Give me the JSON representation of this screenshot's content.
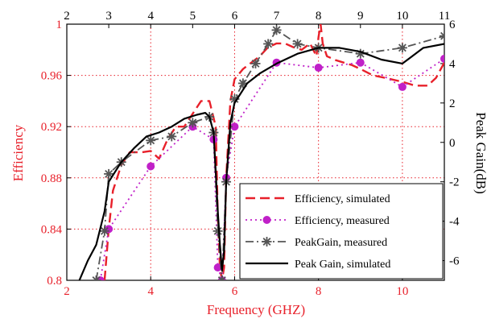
{
  "chart_data": {
    "type": "line",
    "xlabel": "Frequency (GHZ)",
    "ylabel_left": "Efficiency",
    "ylabel_right": "Peak Gain(dB)",
    "xlim": [
      2,
      11
    ],
    "ylim_left": [
      0.8,
      1.0
    ],
    "ylim_right": [
      -7,
      6
    ],
    "xticks": [
      "2",
      "4",
      "6",
      "8",
      "10"
    ],
    "xticks_top": [
      "2",
      "3",
      "4",
      "5",
      "6",
      "7",
      "8",
      "9",
      "10",
      "11"
    ],
    "yticks_left": [
      "0.8",
      "0.84",
      "0.88",
      "0.92",
      "0.96",
      "1"
    ],
    "yticks_right": [
      "-6",
      "-4",
      "-2",
      "0",
      "2",
      "4",
      "6"
    ],
    "grid": true,
    "legend_position": "bottom-right",
    "colors": {
      "left_axis": "#e8202a",
      "right_axis": "#000000",
      "grid": "#e8202a"
    },
    "series": [
      {
        "name": "Efficiency, simulated",
        "axis": "left",
        "color": "#e8202a",
        "style": "dashed",
        "x": [
          2.9,
          3.0,
          3.1,
          3.3,
          3.5,
          3.8,
          4.0,
          4.2,
          4.4,
          4.6,
          4.8,
          5.0,
          5.2,
          5.4,
          5.55,
          5.6,
          5.65,
          5.7,
          5.75,
          5.8,
          5.9,
          6.0,
          6.2,
          6.4,
          6.6,
          6.8,
          7.0,
          7.2,
          7.4,
          7.6,
          7.8,
          7.95,
          8.0,
          8.05,
          8.1,
          8.2,
          8.4,
          8.6,
          8.8,
          9.0,
          9.3,
          9.6,
          10.0,
          10.3,
          10.6,
          10.8,
          11.0
        ],
        "y": [
          0.8,
          0.84,
          0.87,
          0.89,
          0.9,
          0.9,
          0.901,
          0.895,
          0.91,
          0.92,
          0.92,
          0.93,
          0.94,
          0.94,
          0.92,
          0.85,
          0.81,
          0.8,
          0.81,
          0.88,
          0.94,
          0.957,
          0.965,
          0.97,
          0.975,
          0.982,
          0.985,
          0.985,
          0.982,
          0.98,
          0.985,
          0.975,
          0.99,
          1.0,
          0.985,
          0.975,
          0.972,
          0.97,
          0.968,
          0.965,
          0.96,
          0.958,
          0.955,
          0.952,
          0.952,
          0.958,
          0.97
        ]
      },
      {
        "name": "Efficiency, measured",
        "axis": "left",
        "color": "#c020c8",
        "style": "dotted",
        "x": [
          2.8,
          3.0,
          4.0,
          5.0,
          5.5,
          5.6,
          5.7,
          5.8,
          6.0,
          7.0,
          8.0,
          9.0,
          10.0,
          11.0
        ],
        "y": [
          0.8,
          0.84,
          0.889,
          0.92,
          0.91,
          0.81,
          0.8,
          0.88,
          0.92,
          0.97,
          0.966,
          0.97,
          0.951,
          0.973
        ]
      },
      {
        "name": "PeakGain, measured",
        "axis": "right",
        "color": "#555555",
        "style": "dashdot",
        "x": [
          2.7,
          2.9,
          3.0,
          3.3,
          4.0,
          4.5,
          5.0,
          5.4,
          5.5,
          5.6,
          5.7,
          5.8,
          6.0,
          6.2,
          6.5,
          6.8,
          7.0,
          7.5,
          8.0,
          9.0,
          10.0,
          11.0
        ],
        "y": [
          -7.0,
          -4.5,
          -1.6,
          -1.0,
          0.1,
          0.3,
          1.0,
          1.3,
          0.5,
          -4.5,
          -7.0,
          -2.0,
          2.2,
          3.0,
          4.0,
          5.0,
          5.7,
          5.0,
          4.8,
          4.5,
          4.8,
          5.4
        ]
      },
      {
        "name": "Peak Gain, simulated",
        "axis": "right",
        "color": "#000000",
        "style": "solid",
        "x": [
          2.3,
          2.5,
          2.7,
          2.9,
          3.0,
          3.3,
          3.6,
          3.9,
          4.2,
          4.5,
          4.8,
          5.1,
          5.3,
          5.4,
          5.5,
          5.6,
          5.65,
          5.7,
          5.75,
          5.8,
          5.9,
          6.0,
          6.3,
          6.6,
          7.0,
          7.5,
          8.0,
          8.5,
          9.0,
          9.5,
          10.0,
          10.5,
          11.0
        ],
        "y": [
          -7.0,
          -6.0,
          -5.2,
          -3.5,
          -2.0,
          -1.0,
          -0.3,
          0.3,
          0.5,
          0.8,
          1.2,
          1.4,
          1.5,
          1.3,
          0.5,
          -3.5,
          -5.2,
          -6.5,
          -5.5,
          -2.0,
          1.0,
          2.0,
          3.0,
          3.5,
          4.0,
          4.5,
          4.8,
          4.8,
          4.6,
          4.2,
          4.0,
          4.8,
          5.0
        ]
      }
    ]
  }
}
